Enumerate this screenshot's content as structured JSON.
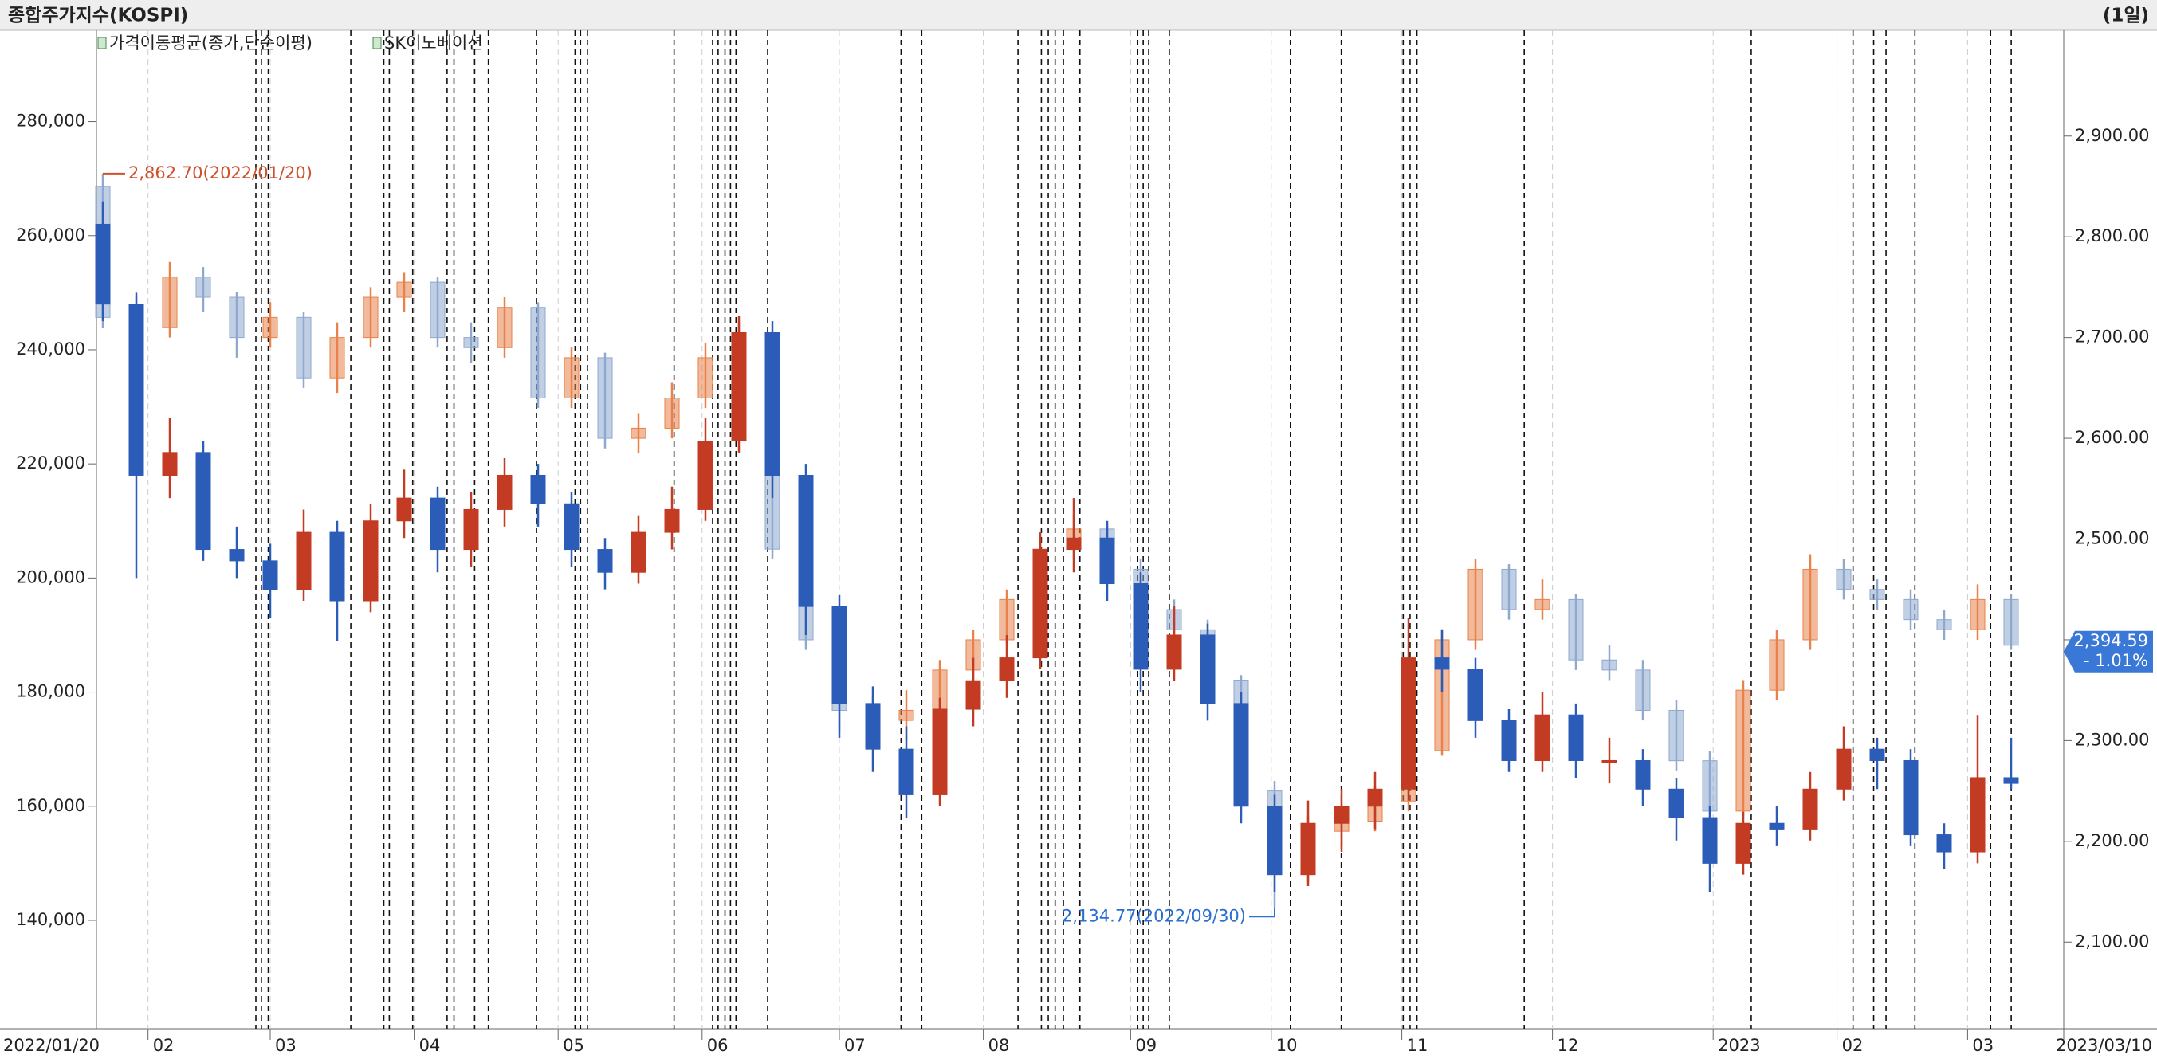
{
  "header": {
    "title": "종합주가지수(KOSPI)",
    "period": "(1일)"
  },
  "chart_data": {
    "type": "candlestick",
    "indicator_legend": "가격이동평균(종가,단순이평)",
    "x_start_label": "2022/01/20",
    "x_end_label": "2023/03/10",
    "categories": [
      null,
      null,
      null,
      null,
      null,
      null,
      null,
      null,
      null,
      null,
      null,
      null,
      null,
      null,
      null,
      null,
      null,
      null,
      null,
      null,
      null,
      null,
      null,
      null,
      null,
      null,
      null,
      null,
      null,
      null,
      null,
      null,
      null,
      null,
      null,
      null,
      null,
      null,
      null,
      null,
      null,
      null,
      null,
      null,
      null,
      null,
      null,
      null,
      null,
      null,
      null,
      null,
      null,
      null,
      null,
      null,
      null,
      null
    ],
    "xticks": [
      {
        "value": 1.35,
        "label": "02"
      },
      {
        "value": 5.0,
        "label": "03"
      },
      {
        "value": 9.3,
        "label": "04"
      },
      {
        "value": 13.6,
        "label": "05"
      },
      {
        "value": 17.9,
        "label": "06"
      },
      {
        "value": 22.0,
        "label": "07"
      },
      {
        "value": 26.3,
        "label": "08"
      },
      {
        "value": 30.7,
        "label": "09"
      },
      {
        "value": 34.9,
        "label": "10"
      },
      {
        "value": 38.8,
        "label": "11"
      },
      {
        "value": 43.3,
        "label": "12"
      },
      {
        "value": 48.1,
        "label": "2023"
      },
      {
        "value": 51.8,
        "label": "02"
      },
      {
        "value": 55.7,
        "label": "03"
      }
    ],
    "ylim": [
      121000,
      296000
    ],
    "yticks": [
      {
        "value": 140000,
        "label": "140,000"
      },
      {
        "value": 160000,
        "label": "160,000"
      },
      {
        "value": 180000,
        "label": "180,000"
      },
      {
        "value": 200000,
        "label": "200,000"
      },
      {
        "value": 220000,
        "label": "220,000"
      },
      {
        "value": 240000,
        "label": "240,000"
      },
      {
        "value": 260000,
        "label": "260,000"
      },
      {
        "value": 280000,
        "label": "280,000"
      }
    ],
    "y2lim": [
      2014,
      3005
    ],
    "y2ticks": [
      {
        "value": 2100,
        "label": "2,100.00"
      },
      {
        "value": 2200,
        "label": "2,200.00"
      },
      {
        "value": 2300,
        "label": "2,300.00"
      },
      {
        "value": 2400,
        "label": "2,400.00"
      },
      {
        "value": 2500,
        "label": "2,500.00"
      },
      {
        "value": 2600,
        "label": "2,600.00"
      },
      {
        "value": 2700,
        "label": "2,700.00"
      },
      {
        "value": 2800,
        "label": "2,800.00"
      },
      {
        "value": 2900,
        "label": "2,900.00"
      }
    ],
    "max_label": "2,862.70(2022/01/20)",
    "min_label": "2,134.77(2022/09/30)",
    "last_label": "2,394.59",
    "last_change": "- 1.01%",
    "series": [
      {
        "axis": "y2",
        "up_color": "#e8824a",
        "down_color": "#8ea8d0",
        "open": [
          2850,
          2720,
          2710,
          2760,
          2740,
          2700,
          2720,
          2660,
          2700,
          2740,
          2755,
          2700,
          2690,
          2730,
          2640,
          2680,
          2600,
          2610,
          2640,
          2680,
          2700,
          2490,
          2400,
          2330,
          2320,
          2330,
          2370,
          2400,
          2440,
          2490,
          2510,
          2470,
          2430,
          2410,
          2360,
          2250,
          2170,
          2210,
          2220,
          2240,
          2290,
          2400,
          2470,
          2430,
          2440,
          2380,
          2370,
          2330,
          2280,
          2230,
          2350,
          2400,
          2470,
          2450,
          2440,
          2420,
          2410,
          2440
        ],
        "high": [
          2862.7,
          2740,
          2775,
          2770,
          2745,
          2735,
          2725,
          2715,
          2750,
          2765,
          2760,
          2715,
          2740,
          2735,
          2690,
          2685,
          2625,
          2655,
          2695,
          2715,
          2705,
          2500,
          2410,
          2345,
          2350,
          2380,
          2410,
          2450,
          2500,
          2525,
          2515,
          2480,
          2440,
          2420,
          2365,
          2260,
          2225,
          2240,
          2255,
          2300,
          2410,
          2480,
          2475,
          2460,
          2445,
          2395,
          2380,
          2340,
          2290,
          2360,
          2410,
          2485,
          2480,
          2460,
          2450,
          2430,
          2455,
          2445
        ],
        "low": [
          2710,
          2680,
          2700,
          2725,
          2680,
          2690,
          2650,
          2645,
          2690,
          2725,
          2690,
          2675,
          2680,
          2630,
          2630,
          2590,
          2585,
          2600,
          2630,
          2660,
          2480,
          2390,
          2310,
          2305,
          2300,
          2320,
          2360,
          2395,
          2430,
          2480,
          2460,
          2420,
          2395,
          2350,
          2240,
          2134.77,
          2160,
          2195,
          2210,
          2230,
          2285,
          2390,
          2420,
          2420,
          2370,
          2360,
          2320,
          2270,
          2220,
          2225,
          2340,
          2390,
          2440,
          2430,
          2410,
          2400,
          2400,
          2390
        ],
        "close": [
          2720,
          2710,
          2760,
          2740,
          2700,
          2720,
          2660,
          2700,
          2740,
          2755,
          2700,
          2690,
          2730,
          2640,
          2680,
          2600,
          2610,
          2640,
          2680,
          2700,
          2490,
          2400,
          2330,
          2320,
          2330,
          2370,
          2400,
          2440,
          2490,
          2510,
          2470,
          2430,
          2410,
          2360,
          2250,
          2170,
          2210,
          2220,
          2240,
          2290,
          2400,
          2470,
          2430,
          2440,
          2380,
          2370,
          2330,
          2280,
          2230,
          2350,
          2400,
          2470,
          2450,
          2440,
          2420,
          2410,
          2440,
          2394.59
        ]
      },
      {
        "name": "SK이노베이션",
        "axis": "y",
        "up_color": "#c23b22",
        "down_color": "#2b5cb8",
        "open": [
          262000,
          248000,
          218000,
          222000,
          205000,
          203000,
          198000,
          208000,
          196000,
          210000,
          214000,
          205000,
          212000,
          218000,
          213000,
          205000,
          201000,
          208000,
          212000,
          224000,
          243000,
          218000,
          195000,
          178000,
          170000,
          162000,
          177000,
          182000,
          186000,
          205000,
          207000,
          199000,
          184000,
          190000,
          178000,
          160000,
          148000,
          157000,
          160000,
          163000,
          186000,
          184000,
          175000,
          168000,
          176000,
          168000,
          168000,
          163000,
          158000,
          150000,
          157000,
          156000,
          163000,
          170000,
          168000,
          155000,
          152000,
          165000
        ],
        "high": [
          266000,
          250000,
          228000,
          224000,
          209000,
          206000,
          212000,
          210000,
          213000,
          219000,
          216000,
          215000,
          221000,
          220000,
          215000,
          207000,
          211000,
          216000,
          228000,
          246000,
          245000,
          220000,
          197000,
          181000,
          174000,
          179000,
          186000,
          190000,
          208000,
          214000,
          210000,
          201000,
          195000,
          192000,
          180000,
          162000,
          161000,
          163000,
          166000,
          193000,
          191000,
          186000,
          177000,
          180000,
          178000,
          172000,
          170000,
          165000,
          160000,
          159000,
          160000,
          166000,
          174000,
          172000,
          170000,
          157000,
          176000,
          172000
        ],
        "low": [
          245000,
          200000,
          214000,
          203000,
          200000,
          193000,
          196000,
          189000,
          194000,
          207000,
          201000,
          202000,
          209000,
          209000,
          202000,
          198000,
          199000,
          205000,
          210000,
          222000,
          214000,
          190000,
          172000,
          166000,
          158000,
          160000,
          174000,
          179000,
          184000,
          201000,
          196000,
          180000,
          182000,
          175000,
          157000,
          145000,
          146000,
          152000,
          156000,
          161000,
          180000,
          172000,
          166000,
          166000,
          165000,
          164000,
          160000,
          154000,
          145000,
          148000,
          153000,
          154000,
          161000,
          163000,
          153000,
          149000,
          150000,
          163000
        ],
        "close": [
          248000,
          218000,
          222000,
          205000,
          203000,
          198000,
          208000,
          196000,
          210000,
          214000,
          205000,
          212000,
          218000,
          213000,
          205000,
          201000,
          208000,
          212000,
          224000,
          243000,
          218000,
          195000,
          178000,
          170000,
          162000,
          177000,
          182000,
          186000,
          205000,
          207000,
          199000,
          184000,
          190000,
          178000,
          160000,
          148000,
          157000,
          160000,
          163000,
          186000,
          184000,
          175000,
          168000,
          176000,
          168000,
          168000,
          163000,
          158000,
          150000,
          157000,
          156000,
          163000,
          170000,
          168000,
          155000,
          152000,
          165000,
          164000
        ]
      }
    ]
  }
}
